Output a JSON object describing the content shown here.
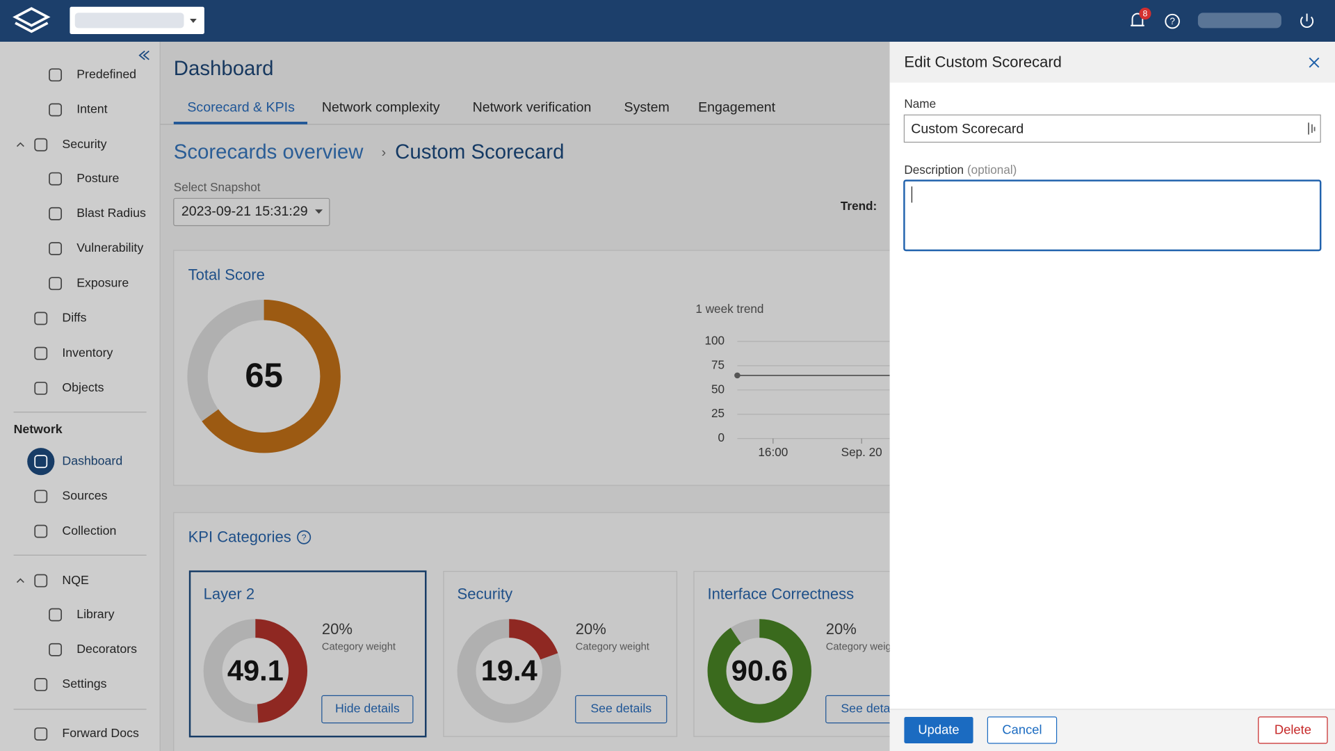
{
  "topbar": {
    "notification_count": "8"
  },
  "sidebar": {
    "items": [
      "Predefined",
      "Intent",
      "Security",
      "Posture",
      "Blast Radius",
      "Vulnerability",
      "Exposure",
      "Diffs",
      "Inventory",
      "Objects",
      "Dashboard",
      "Sources",
      "Collection",
      "NQE",
      "Library",
      "Decorators",
      "Settings",
      "Forward Docs"
    ],
    "section_heading": "Network"
  },
  "main": {
    "title": "Dashboard",
    "tabs": [
      "Scorecard & KPIs",
      "Network complexity",
      "Network verification",
      "System",
      "Engagement"
    ],
    "breadcrumb": [
      "Scorecards overview",
      "Custom Scorecard"
    ],
    "snapshot_label": "Select Snapshot",
    "snapshot_value": "2023-09-21 15:31:29",
    "trend_label": "Trend:",
    "total_score": {
      "title": "Total Score",
      "value": 65
    },
    "trend_chart": {
      "type": "line",
      "title": "1 week trend",
      "ylim": [
        0,
        100
      ],
      "yticks": [
        0,
        25,
        50,
        75,
        100
      ],
      "xticks": [
        "16:00",
        "Sep. 20"
      ],
      "values": [
        65
      ]
    },
    "kpi": {
      "title": "KPI Categories",
      "cards": [
        {
          "title": "Layer 2",
          "value": 49.1,
          "weight": "20%",
          "weight_label": "Category weight",
          "button": "Hide details",
          "color": "#8f2822"
        },
        {
          "title": "Security",
          "value": 19.4,
          "weight": "20%",
          "weight_label": "Category weight",
          "button": "See details",
          "color": "#8f2822"
        },
        {
          "title": "Interface Correctness",
          "value": 90.6,
          "weight": "20%",
          "weight_label": "Category weight",
          "button": "See details",
          "color": "#3a6a1d"
        }
      ]
    }
  },
  "drawer": {
    "title": "Edit Custom Scorecard",
    "name_label": "Name",
    "name_value": "Custom Scorecard",
    "description_label": "Description",
    "description_hint": "(optional)",
    "buttons": [
      "Update",
      "Cancel",
      "Delete"
    ]
  }
}
